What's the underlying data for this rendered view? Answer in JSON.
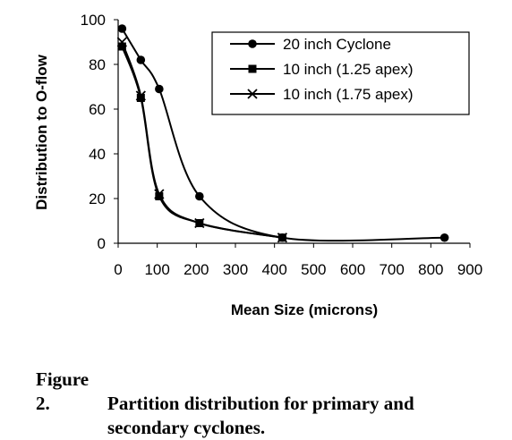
{
  "chart_data": {
    "type": "line",
    "xlabel": "Mean Size (microns)",
    "ylabel": "Distribution to O-flow",
    "xlim": [
      0,
      900
    ],
    "ylim": [
      0,
      100
    ],
    "x_ticks": [
      "0",
      "100",
      "200",
      "300",
      "400",
      "500",
      "600",
      "700",
      "800",
      "900"
    ],
    "y_ticks": [
      "0",
      "20",
      "40",
      "60",
      "80",
      "100"
    ],
    "grid": false,
    "legend_position": "top-right",
    "series": [
      {
        "name": "20 inch Cyclone",
        "marker": "circle",
        "points": [
          [
            10,
            96
          ],
          [
            58,
            82
          ],
          [
            105,
            69
          ],
          [
            208,
            21
          ],
          [
            420,
            2.5
          ],
          [
            835,
            2.5
          ]
        ]
      },
      {
        "name": "10 inch (1.25 apex)",
        "marker": "square",
        "points": [
          [
            10,
            88
          ],
          [
            58,
            65
          ],
          [
            105,
            21
          ],
          [
            208,
            9
          ],
          [
            420,
            2.5
          ]
        ]
      },
      {
        "name": "10 inch (1.75 apex)",
        "marker": "x",
        "points": [
          [
            10,
            90
          ],
          [
            58,
            66
          ],
          [
            105,
            22
          ],
          [
            208,
            9
          ],
          [
            420,
            2.5
          ]
        ]
      }
    ]
  },
  "caption": {
    "label": "Figure 2.",
    "line1": "Partition distribution for primary and",
    "line2": "secondary cyclones."
  }
}
